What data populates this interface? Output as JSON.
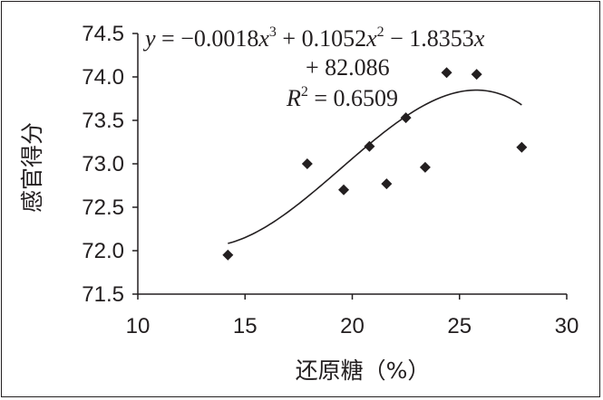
{
  "chart_data": {
    "type": "scatter",
    "xlabel": "还原糖（%）",
    "ylabel": "感官得分",
    "xlim": [
      10,
      30
    ],
    "ylim": [
      71.5,
      74.5
    ],
    "grid": false,
    "x_ticks": [
      10,
      15,
      20,
      25,
      30
    ],
    "y_ticks": [
      71.5,
      72.0,
      72.5,
      73.0,
      73.5,
      74.0,
      74.5
    ],
    "x_tick_labels": [
      "10",
      "15",
      "20",
      "25",
      "30"
    ],
    "y_tick_labels": [
      "71.5",
      "72.0",
      "72.5",
      "73.0",
      "73.5",
      "74.0",
      "74.5"
    ],
    "points": [
      {
        "x": 14.2,
        "y": 71.95
      },
      {
        "x": 17.9,
        "y": 73.0
      },
      {
        "x": 19.6,
        "y": 72.7
      },
      {
        "x": 20.8,
        "y": 73.2
      },
      {
        "x": 21.6,
        "y": 72.77
      },
      {
        "x": 22.5,
        "y": 73.53
      },
      {
        "x": 23.4,
        "y": 72.96
      },
      {
        "x": 24.4,
        "y": 74.05
      },
      {
        "x": 25.8,
        "y": 74.03
      },
      {
        "x": 27.9,
        "y": 73.19
      }
    ],
    "trendline": {
      "type": "polynomial",
      "coefficients": [
        -0.0018,
        0.1052,
        -1.8353,
        82.086
      ],
      "x_range": [
        14.2,
        27.9
      ]
    },
    "annotation": {
      "eq_y": "y",
      "eq_part1": " = −0.0018",
      "eq_x1": "x",
      "eq_exp1": "3",
      "eq_part2": " + 0.1052",
      "eq_x2": "x",
      "eq_exp2": "2",
      "eq_part3": " − 1.8353",
      "eq_x3": "x",
      "eq_line2": "+ 82.086",
      "r2_r": "R",
      "r2_exp": "2",
      "r2_value": " = 0.6509"
    }
  },
  "colors": {
    "ink": "#231f20",
    "background": "#ffffff"
  }
}
